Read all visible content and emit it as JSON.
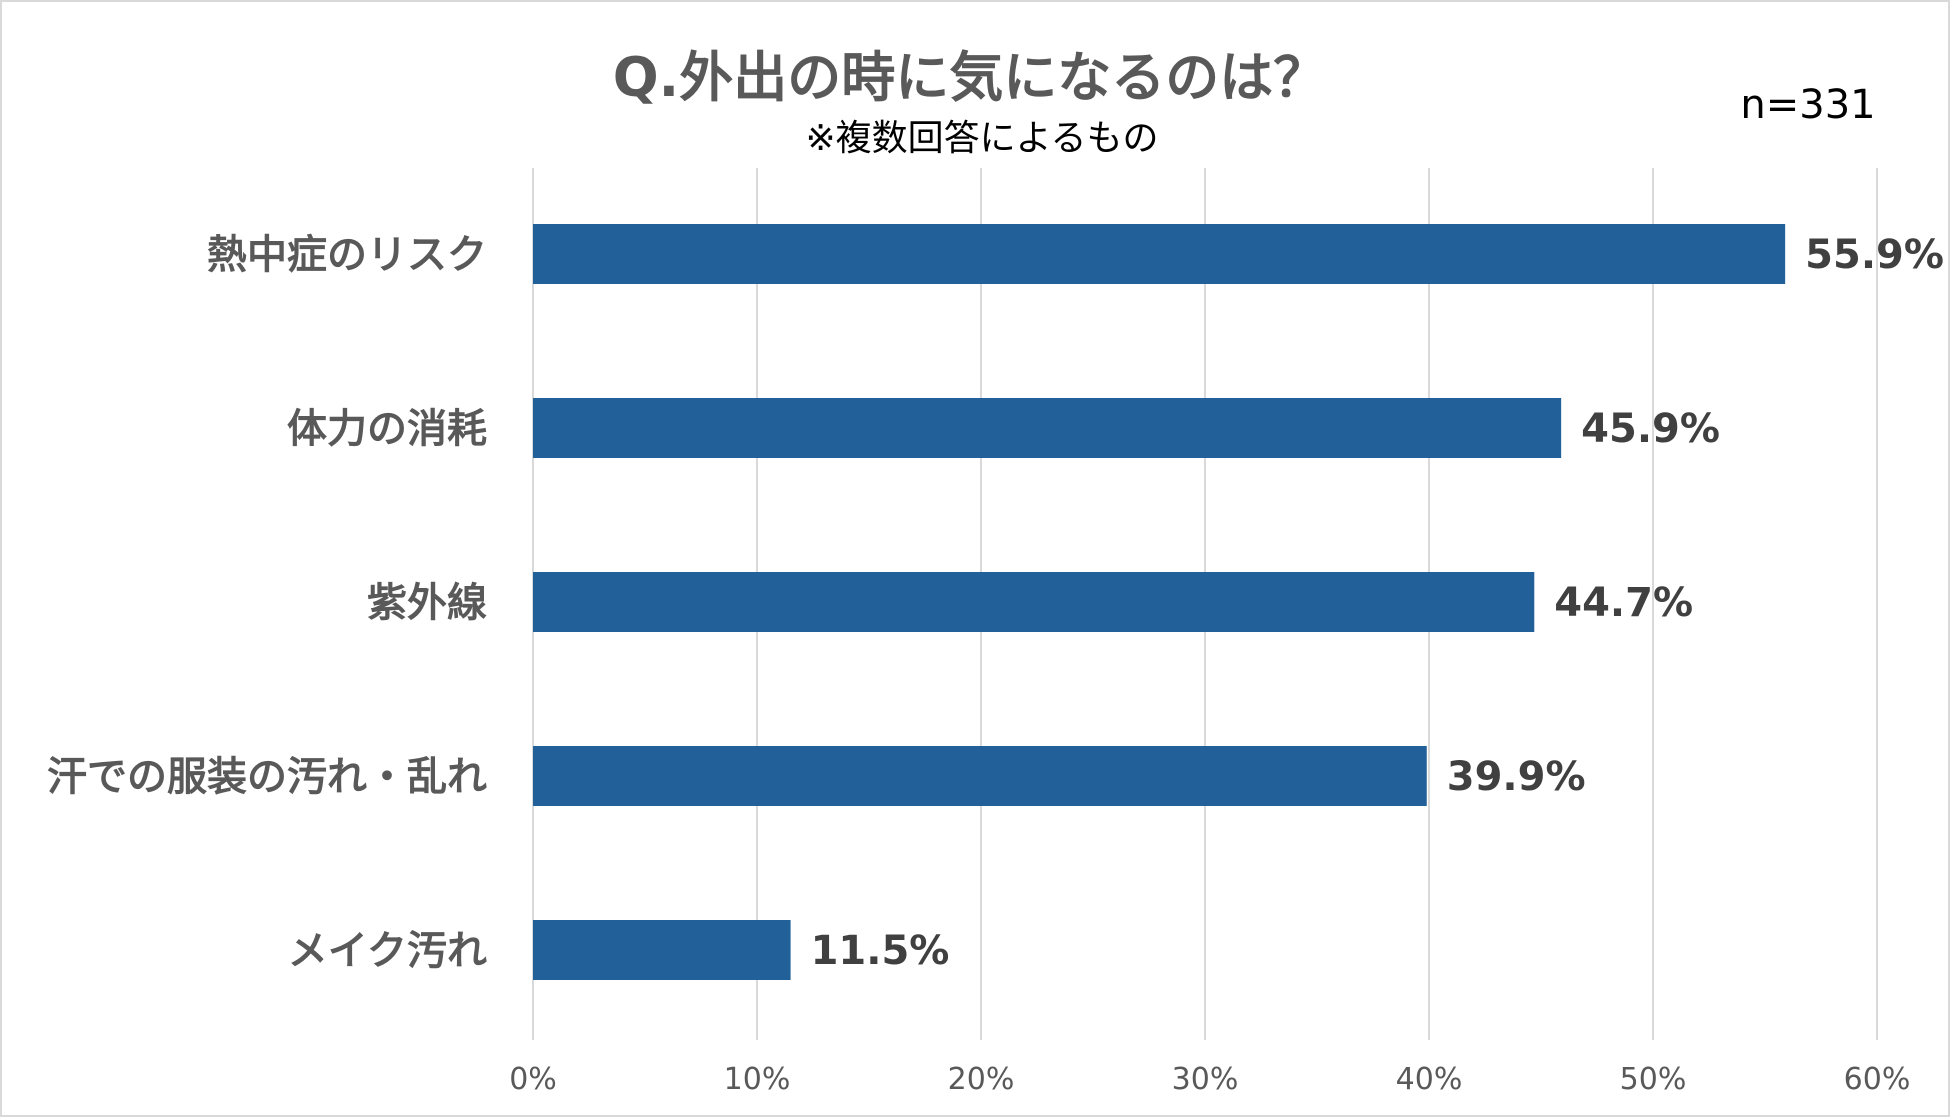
{
  "chart_data": {
    "type": "bar",
    "orientation": "horizontal",
    "title": "Q.外出の時に気になるのは？",
    "subtitle": "※複数回答によるもの",
    "sample_size": "n=331",
    "categories": [
      "熱中症のリスク",
      "体力の消耗",
      "紫外線",
      "汗での服装の汚れ・乱れ",
      "メイク汚れ"
    ],
    "values": [
      55.9,
      45.9,
      44.7,
      39.9,
      11.5
    ],
    "value_labels": [
      "55.9%",
      "45.9%",
      "44.7%",
      "39.9%",
      "11.5%"
    ],
    "x_ticks": [
      0,
      10,
      20,
      30,
      40,
      50,
      60
    ],
    "x_tick_labels": [
      "0%",
      "10%",
      "20%",
      "30%",
      "40%",
      "50%",
      "60%"
    ],
    "xlim": [
      0,
      60
    ],
    "xlabel": "",
    "ylabel": "",
    "grid": "vertical",
    "bar_color": "#22609a"
  }
}
